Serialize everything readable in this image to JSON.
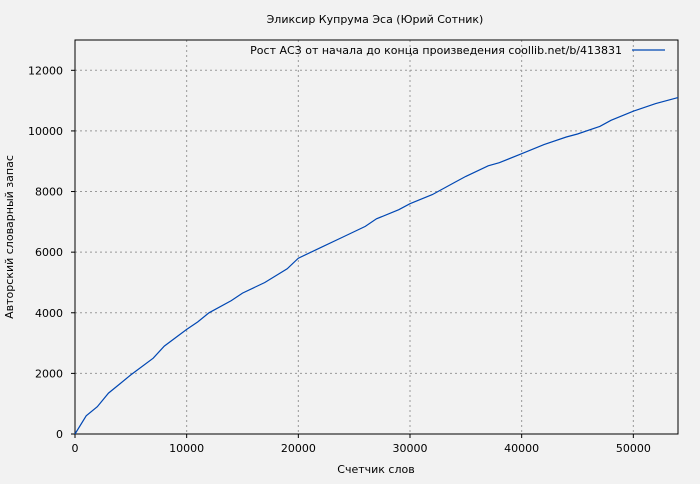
{
  "chart_data": {
    "type": "line",
    "title": "Эликсир Купрума Эса (Юрий Сотник)",
    "xlabel": "Счетчик слов",
    "ylabel": "Авторский словарный запас",
    "xlim": [
      0,
      54000
    ],
    "ylim": [
      0,
      13000
    ],
    "xticks": [
      0,
      10000,
      20000,
      30000,
      40000,
      50000
    ],
    "yticks": [
      0,
      2000,
      4000,
      6000,
      8000,
      10000,
      12000
    ],
    "grid": true,
    "legend_position": "top-right",
    "series": [
      {
        "name": "Рост АСЗ от начала до конца произведения  coollib.net/b/413831",
        "color": "#0047b3",
        "x": [
          0,
          1000,
          2000,
          3000,
          4000,
          5000,
          7000,
          8000,
          10000,
          11000,
          12000,
          14000,
          15000,
          17000,
          19000,
          20000,
          22000,
          24000,
          26000,
          27000,
          29000,
          30000,
          32000,
          34000,
          35000,
          37000,
          38000,
          40000,
          42000,
          44000,
          45000,
          47000,
          48000,
          50000,
          52000,
          54000
        ],
        "y": [
          0,
          600,
          900,
          1350,
          1650,
          1950,
          2500,
          2900,
          3450,
          3700,
          4000,
          4400,
          4650,
          5000,
          5450,
          5800,
          6150,
          6500,
          6850,
          7100,
          7400,
          7600,
          7900,
          8300,
          8500,
          8850,
          8950,
          9250,
          9550,
          9800,
          9900,
          10150,
          10350,
          10650,
          10900,
          11100
        ]
      }
    ]
  }
}
